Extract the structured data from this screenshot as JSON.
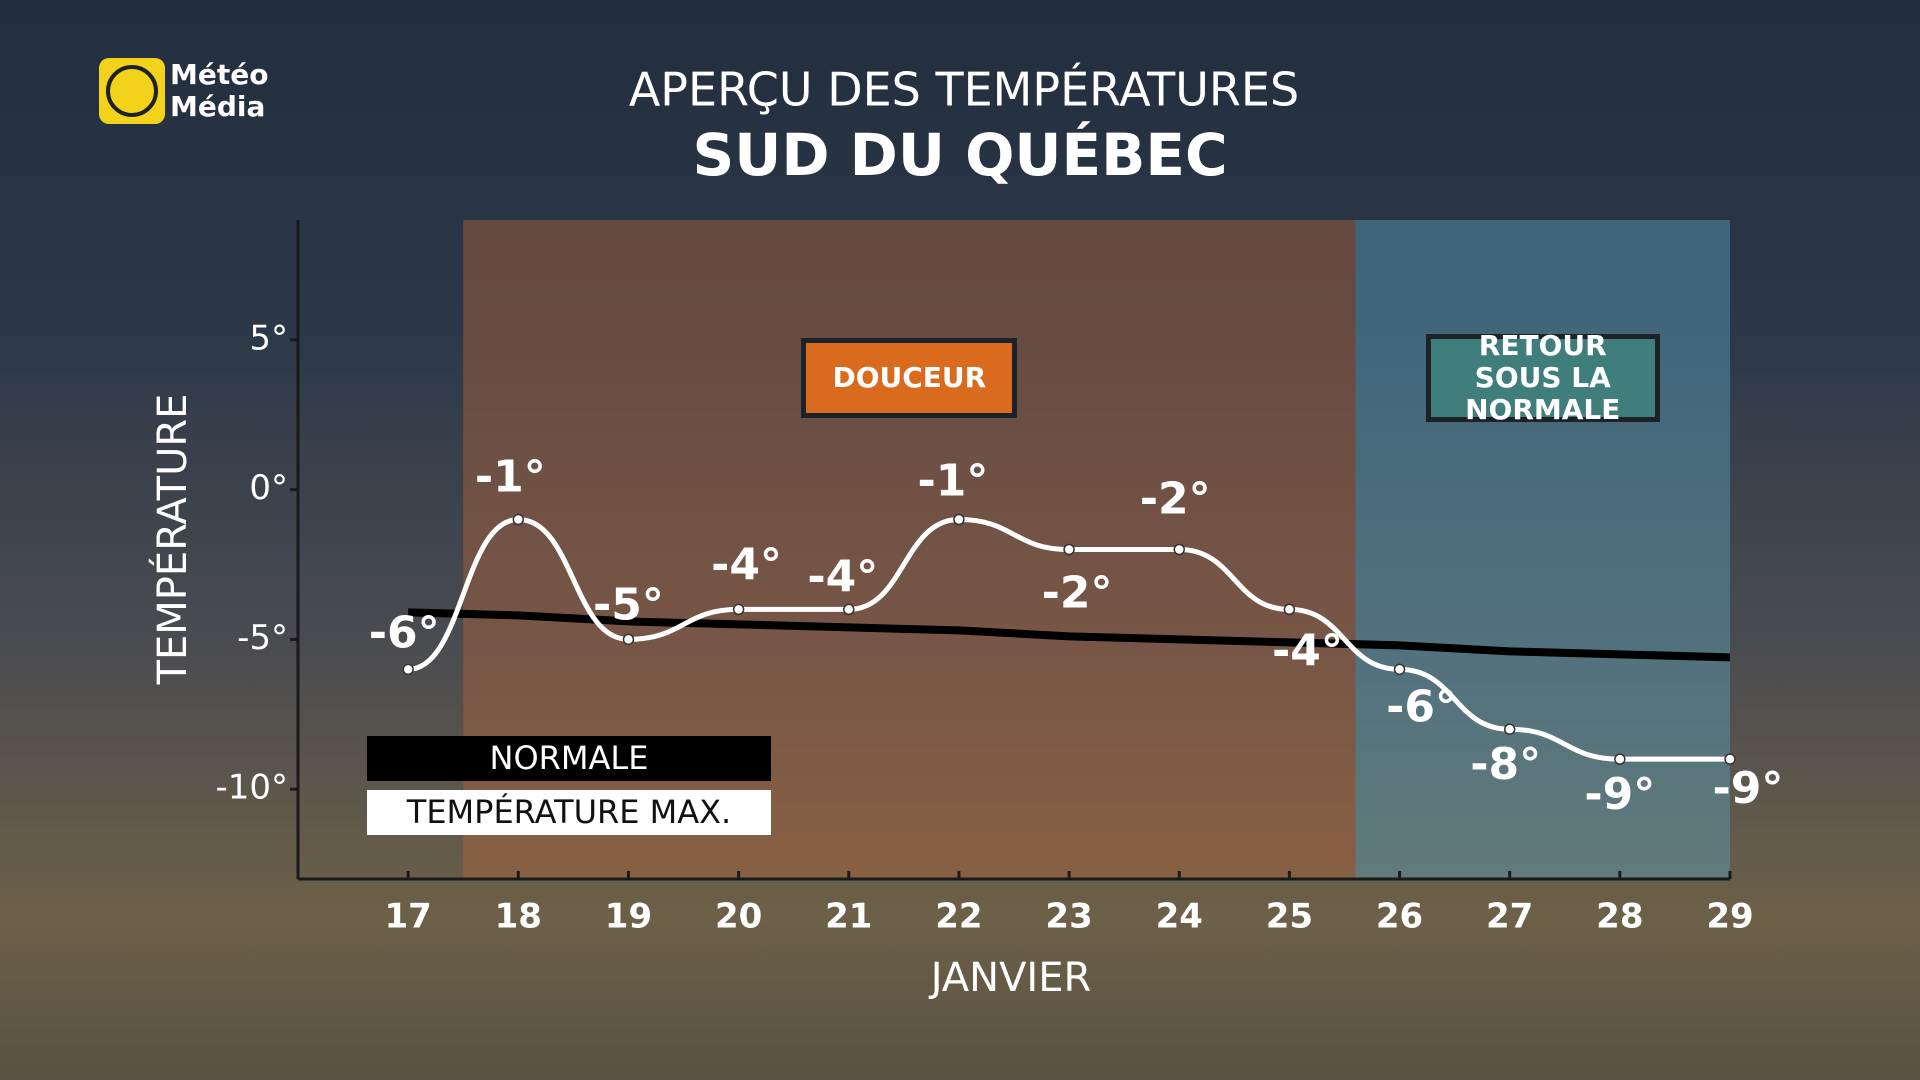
{
  "header": {
    "logo": [
      "Météo",
      "Média"
    ]
  },
  "chart_data": {
    "type": "line",
    "title": "APERÇU DES TEMPÉRATURES",
    "subtitle": "SUD DU QUÉBEC",
    "y_label": "TEMPÉRATURE",
    "x_label": "JANVIER",
    "x": [
      17,
      18,
      19,
      20,
      21,
      22,
      23,
      24,
      25,
      26,
      27,
      28,
      29
    ],
    "xlim": [
      16,
      29
    ],
    "xticks": [
      17,
      18,
      19,
      20,
      21,
      22,
      23,
      24,
      25,
      26,
      27,
      28,
      29
    ],
    "ylim": [
      -13,
      9
    ],
    "yticks": [
      {
        "value": 5,
        "label": "5°"
      },
      {
        "value": 0,
        "label": "0°"
      },
      {
        "value": -5,
        "label": "-5°"
      },
      {
        "value": -10,
        "label": "-10°"
      }
    ],
    "series": [
      {
        "name": "NORMALE",
        "color": "#000000",
        "values": [
          -4.1,
          -4.2,
          -4.4,
          -4.5,
          -4.6,
          -4.7,
          -4.9,
          -5.0,
          -5.1,
          -5.2,
          -5.4,
          -5.5,
          -5.6
        ]
      },
      {
        "name": "TEMPÉRATURE MAX.",
        "color": "#ffffff",
        "values": [
          -6,
          -1,
          -5,
          -4,
          -4,
          -1,
          -2,
          -2,
          -4,
          -6,
          -8,
          -9,
          -9
        ],
        "value_labels": [
          "-6°",
          "-1°",
          "-5°",
          "-4°",
          "-4°",
          "-1°",
          "-2°",
          "-2°",
          "-4°",
          "-6°",
          "-8°",
          "-9°",
          "-9°"
        ]
      }
    ],
    "regions": [
      {
        "label": "DOUCEUR",
        "from": 17.5,
        "to": 25.6,
        "color": "#d96a1e"
      },
      {
        "label": "RETOUR SOUS LA NORMALE",
        "from": 25.6,
        "to": 29,
        "color": "#3f7e7a"
      }
    ]
  }
}
